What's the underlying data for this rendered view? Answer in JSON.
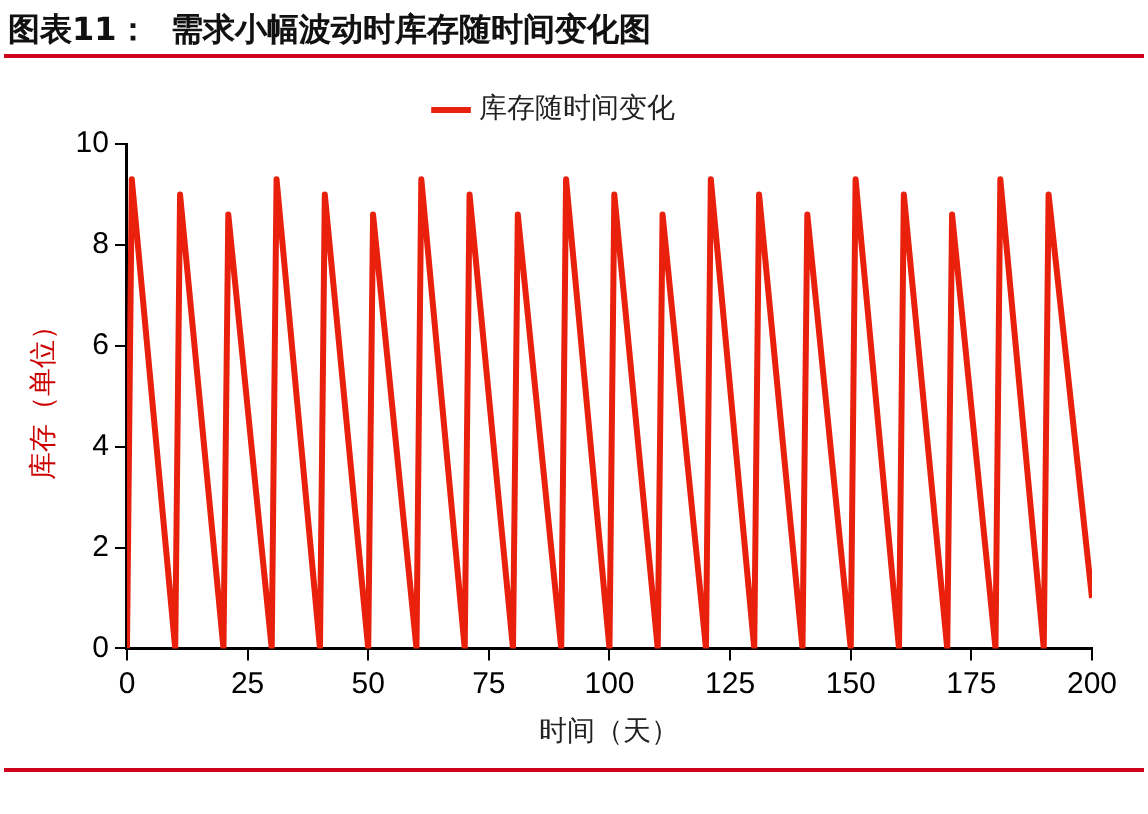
{
  "chart_data": {
    "type": "line",
    "title": "图表11：  需求小幅波动时库存随时间变化图",
    "xlabel": "时间（天）",
    "ylabel": "库存（单位）",
    "x": [
      0,
      1,
      10,
      11,
      20,
      21,
      30,
      31,
      40,
      41,
      50,
      51,
      60,
      61,
      70,
      71,
      80,
      81,
      90,
      91,
      100,
      101,
      110,
      111,
      120,
      121,
      130,
      131,
      140,
      141,
      150,
      151,
      160,
      161,
      170,
      171,
      180,
      181,
      190,
      191,
      200
    ],
    "series": [
      {
        "name": "库存随时间变化",
        "color": "#e8200c",
        "values": [
          0,
          9.3,
          0,
          9.0,
          0,
          8.6,
          0,
          9.3,
          0,
          9.0,
          0,
          8.6,
          0,
          9.3,
          0,
          9.0,
          0,
          8.6,
          0,
          9.3,
          0,
          9.0,
          0,
          8.6,
          0,
          9.3,
          0,
          9.0,
          0,
          8.6,
          0,
          9.3,
          0,
          9.0,
          0,
          8.6,
          0,
          9.3,
          0,
          9.0,
          1.0
        ]
      }
    ],
    "xlim": [
      0,
      200
    ],
    "xticks": [
      0,
      25,
      50,
      75,
      100,
      125,
      150,
      175,
      200
    ],
    "ylim": [
      0,
      10
    ],
    "yticks": [
      0,
      2,
      4,
      6,
      8,
      10
    ],
    "grid": false,
    "legend": "top",
    "marker": "none",
    "line_style": "solid"
  }
}
